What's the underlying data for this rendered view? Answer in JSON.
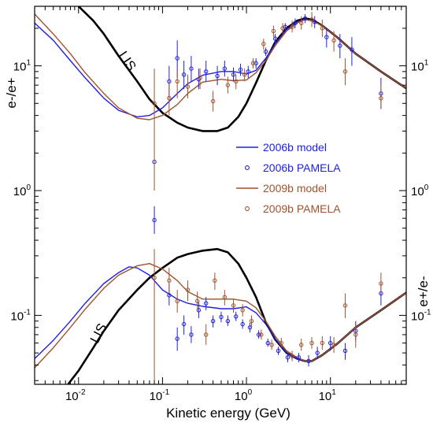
{
  "chart_data": {
    "type": "line",
    "title": "",
    "xlabel": "Kinetic energy (GeV)",
    "ylabel_left": "e-/e+",
    "ylabel_right": "e+/e-",
    "x_scale": "log",
    "y_scale": "log",
    "xlim": [
      0.003,
      80
    ],
    "ylim": [
      0.028,
      30
    ],
    "x_tick_labels": [
      {
        "v": 0.01,
        "base": "10",
        "exp": "-2"
      },
      {
        "v": 0.1,
        "base": "10",
        "exp": "-1"
      },
      {
        "v": 1,
        "base": "10",
        "exp": "0"
      },
      {
        "v": 10,
        "base": "10",
        "exp": "1"
      }
    ],
    "y_tick_labels": [
      {
        "v": 10,
        "base": "10",
        "exp": "1"
      },
      {
        "v": 1,
        "base": "10",
        "exp": "0"
      },
      {
        "v": 0.1,
        "base": "10",
        "exp": "-1"
      }
    ],
    "legend": [
      {
        "label": "2006b model",
        "kind": "line",
        "color": "#2020e0"
      },
      {
        "label": "2006b PAMELA",
        "kind": "marker",
        "color": "#2020e0"
      },
      {
        "label": "2009b model",
        "kind": "line",
        "color": "#a0522d"
      },
      {
        "label": "2009b PAMELA",
        "kind": "marker",
        "color": "#a0522d"
      }
    ],
    "annotations": [
      "LIS",
      "LIS"
    ],
    "series": [
      {
        "group": "e-/e+",
        "label": "LIS",
        "kind": "line",
        "color": "#000000",
        "x": [
          0.01,
          0.015,
          0.02,
          0.03,
          0.05,
          0.07,
          0.1,
          0.15,
          0.2,
          0.3,
          0.45,
          0.6,
          0.8,
          1.0,
          1.3,
          1.7,
          2.2,
          3,
          4,
          5,
          6,
          8,
          12,
          20,
          40,
          80
        ],
        "y": [
          30,
          23,
          18,
          12,
          7.5,
          5.4,
          4.2,
          3.5,
          3.2,
          3.0,
          3.0,
          3.2,
          3.9,
          5.0,
          7.3,
          11,
          15.5,
          20,
          23,
          24,
          23.5,
          21,
          17,
          12.5,
          9,
          6.6
        ]
      },
      {
        "group": "e-/e+",
        "label": "2006b model",
        "kind": "line",
        "color": "#2020e0",
        "x": [
          0.003,
          0.005,
          0.008,
          0.012,
          0.02,
          0.03,
          0.05,
          0.07,
          0.1,
          0.15,
          0.2,
          0.3,
          0.5,
          0.7,
          1.0,
          1.3,
          1.7,
          2.2,
          3,
          4,
          5,
          6,
          8,
          12,
          20,
          40,
          80
        ],
        "y": [
          22,
          16,
          11,
          8,
          5.5,
          4.4,
          3.9,
          4.0,
          4.6,
          6.0,
          7.2,
          8.4,
          9.0,
          9.0,
          8.6,
          9.2,
          11.5,
          15,
          19.5,
          22.5,
          23.5,
          23,
          21,
          17,
          12.5,
          9,
          6.6
        ]
      },
      {
        "group": "e-/e+",
        "label": "2009b model",
        "kind": "line",
        "color": "#a0522d",
        "x": [
          0.003,
          0.005,
          0.008,
          0.012,
          0.02,
          0.03,
          0.05,
          0.07,
          0.1,
          0.15,
          0.2,
          0.3,
          0.5,
          0.7,
          1.0,
          1.3,
          1.7,
          2.2,
          3,
          4,
          5,
          6,
          8,
          12,
          20,
          40,
          80
        ],
        "y": [
          26,
          18,
          12.5,
          8.8,
          6.0,
          4.6,
          3.8,
          3.7,
          4.0,
          4.9,
          6.0,
          7.4,
          7.8,
          7.6,
          7.7,
          8.8,
          11,
          14.5,
          19,
          22,
          23.5,
          23,
          21,
          17,
          12.5,
          9,
          6.6
        ]
      },
      {
        "group": "e+/e-",
        "label": "LIS",
        "kind": "line",
        "color": "#000000",
        "x": [
          0.0075,
          0.01,
          0.015,
          0.02,
          0.03,
          0.05,
          0.07,
          0.1,
          0.15,
          0.2,
          0.3,
          0.45,
          0.6,
          0.8,
          1.0,
          1.3,
          1.7,
          2.2,
          3,
          4,
          5,
          6,
          8,
          12,
          20,
          40,
          80
        ],
        "y": [
          0.028,
          0.036,
          0.055,
          0.075,
          0.11,
          0.16,
          0.2,
          0.24,
          0.29,
          0.31,
          0.33,
          0.34,
          0.32,
          0.26,
          0.2,
          0.14,
          0.088,
          0.064,
          0.05,
          0.045,
          0.043,
          0.043,
          0.048,
          0.059,
          0.08,
          0.11,
          0.152
        ]
      },
      {
        "group": "e+/e-",
        "label": "2006b model",
        "kind": "line",
        "color": "#2020e0",
        "x": [
          0.003,
          0.005,
          0.008,
          0.012,
          0.02,
          0.03,
          0.04,
          0.05,
          0.07,
          0.1,
          0.15,
          0.2,
          0.3,
          0.5,
          0.7,
          1.0,
          1.3,
          1.7,
          2.2,
          3,
          4,
          5,
          6,
          8,
          12,
          20,
          40,
          80
        ],
        "y": [
          0.045,
          0.063,
          0.09,
          0.125,
          0.18,
          0.22,
          0.245,
          0.24,
          0.21,
          0.16,
          0.135,
          0.125,
          0.118,
          0.113,
          0.113,
          0.117,
          0.105,
          0.085,
          0.065,
          0.05,
          0.045,
          0.043,
          0.043,
          0.048,
          0.059,
          0.08,
          0.11,
          0.152
        ]
      },
      {
        "group": "e+/e-",
        "label": "2009b model",
        "kind": "line",
        "color": "#a0522d",
        "x": [
          0.003,
          0.005,
          0.008,
          0.012,
          0.02,
          0.03,
          0.05,
          0.07,
          0.1,
          0.15,
          0.2,
          0.3,
          0.5,
          0.7,
          1.0,
          1.3,
          1.7,
          2.2,
          3,
          4,
          5,
          6,
          8,
          12,
          20,
          40,
          80
        ],
        "y": [
          0.038,
          0.055,
          0.08,
          0.112,
          0.165,
          0.21,
          0.25,
          0.26,
          0.235,
          0.19,
          0.155,
          0.135,
          0.135,
          0.135,
          0.13,
          0.115,
          0.09,
          0.068,
          0.052,
          0.046,
          0.043,
          0.043,
          0.048,
          0.059,
          0.08,
          0.11,
          0.152
        ]
      },
      {
        "group": "e-/e+",
        "label": "2006b PAMELA",
        "kind": "points",
        "color": "#2020e0",
        "points": [
          {
            "x": 0.08,
            "y": 1.7,
            "lo": 1.7,
            "hi": 1.7
          },
          {
            "x": 0.08,
            "y": 0.58,
            "lo": 0.45,
            "hi": 0.75
          },
          {
            "x": 0.12,
            "y": 7.5,
            "lo": 5.5,
            "hi": 10
          },
          {
            "x": 0.15,
            "y": 11.5,
            "lo": 8,
            "hi": 16
          },
          {
            "x": 0.18,
            "y": 8.5,
            "lo": 6.5,
            "hi": 11
          },
          {
            "x": 0.22,
            "y": 9.5,
            "lo": 7.5,
            "hi": 12
          },
          {
            "x": 0.27,
            "y": 7.8,
            "lo": 6.5,
            "hi": 9.5
          },
          {
            "x": 0.33,
            "y": 9,
            "lo": 7.5,
            "hi": 11
          },
          {
            "x": 0.45,
            "y": 8.3,
            "lo": 7,
            "hi": 10
          },
          {
            "x": 0.55,
            "y": 9.5,
            "lo": 8.2,
            "hi": 11
          },
          {
            "x": 0.7,
            "y": 8.5,
            "lo": 7.5,
            "hi": 9.7
          },
          {
            "x": 0.85,
            "y": 9.3,
            "lo": 8.3,
            "hi": 10.4
          },
          {
            "x": 1.05,
            "y": 9,
            "lo": 8,
            "hi": 10
          },
          {
            "x": 1.3,
            "y": 10.5,
            "lo": 9.5,
            "hi": 11.5
          },
          {
            "x": 1.7,
            "y": 13,
            "lo": 12,
            "hi": 14
          },
          {
            "x": 2.2,
            "y": 16.5,
            "lo": 15,
            "hi": 18
          },
          {
            "x": 2.9,
            "y": 20.5,
            "lo": 19,
            "hi": 22
          },
          {
            "x": 3.8,
            "y": 22,
            "lo": 20,
            "hi": 24
          },
          {
            "x": 5.0,
            "y": 24,
            "lo": 22,
            "hi": 26
          },
          {
            "x": 6.5,
            "y": 22.5,
            "lo": 20,
            "hi": 25
          },
          {
            "x": 9,
            "y": 17,
            "lo": 14,
            "hi": 20
          },
          {
            "x": 13,
            "y": 14.5,
            "lo": 11.5,
            "hi": 18
          },
          {
            "x": 18,
            "y": 13.5,
            "lo": 10,
            "hi": 17
          },
          {
            "x": 40,
            "y": 6,
            "lo": 4.5,
            "hi": 8
          }
        ]
      },
      {
        "group": "e-/e+",
        "label": "2009b PAMELA",
        "kind": "points",
        "color": "#a0522d",
        "points": [
          {
            "x": 0.08,
            "y": 5,
            "lo": 1.0,
            "hi": 9.5
          },
          {
            "x": 0.12,
            "y": 5.5,
            "lo": 4,
            "hi": 7.5
          },
          {
            "x": 0.15,
            "y": 7.5,
            "lo": 5.5,
            "hi": 9.5
          },
          {
            "x": 0.2,
            "y": 6.8,
            "lo": 5.5,
            "hi": 8.5
          },
          {
            "x": 0.28,
            "y": 8,
            "lo": 6.5,
            "hi": 9.5
          },
          {
            "x": 0.4,
            "y": 5.2,
            "lo": 4.3,
            "hi": 6.3
          },
          {
            "x": 0.6,
            "y": 7,
            "lo": 6,
            "hi": 8.2
          },
          {
            "x": 0.75,
            "y": 7.5,
            "lo": 6.5,
            "hi": 8.5
          },
          {
            "x": 0.95,
            "y": 8.5,
            "lo": 7.5,
            "hi": 9.5
          },
          {
            "x": 1.2,
            "y": 10.5,
            "lo": 9.5,
            "hi": 11.5
          },
          {
            "x": 1.6,
            "y": 15,
            "lo": 13.5,
            "hi": 16.5
          },
          {
            "x": 2.1,
            "y": 19,
            "lo": 17,
            "hi": 21
          },
          {
            "x": 2.7,
            "y": 20,
            "lo": 18,
            "hi": 22
          },
          {
            "x": 3.5,
            "y": 20.5,
            "lo": 18.5,
            "hi": 23
          },
          {
            "x": 4.5,
            "y": 22,
            "lo": 19.5,
            "hi": 25
          },
          {
            "x": 6,
            "y": 23.5,
            "lo": 20.5,
            "hi": 27
          },
          {
            "x": 8,
            "y": 20,
            "lo": 17,
            "hi": 23.5
          },
          {
            "x": 11,
            "y": 16,
            "lo": 13,
            "hi": 19
          },
          {
            "x": 15,
            "y": 9,
            "lo": 7,
            "hi": 11.5
          },
          {
            "x": 40,
            "y": 5.5,
            "lo": 4.5,
            "hi": 7
          }
        ]
      },
      {
        "group": "e+/e-",
        "label": "2006b PAMELA",
        "kind": "points",
        "color": "#2020e0",
        "points": [
          {
            "x": 0.12,
            "y": 0.145,
            "lo": 0.12,
            "hi": 0.18
          },
          {
            "x": 0.15,
            "y": 0.065,
            "lo": 0.052,
            "hi": 0.08
          },
          {
            "x": 0.18,
            "y": 0.085,
            "lo": 0.07,
            "hi": 0.1
          },
          {
            "x": 0.22,
            "y": 0.07,
            "lo": 0.06,
            "hi": 0.082
          },
          {
            "x": 0.27,
            "y": 0.11,
            "lo": 0.095,
            "hi": 0.13
          },
          {
            "x": 0.33,
            "y": 0.125,
            "lo": 0.11,
            "hi": 0.14
          },
          {
            "x": 0.4,
            "y": 0.09,
            "lo": 0.08,
            "hi": 0.1
          },
          {
            "x": 0.5,
            "y": 0.097,
            "lo": 0.088,
            "hi": 0.107
          },
          {
            "x": 0.6,
            "y": 0.09,
            "lo": 0.082,
            "hi": 0.1
          },
          {
            "x": 0.75,
            "y": 0.098,
            "lo": 0.09,
            "hi": 0.107
          },
          {
            "x": 0.9,
            "y": 0.085,
            "lo": 0.078,
            "hi": 0.093
          },
          {
            "x": 1.1,
            "y": 0.08,
            "lo": 0.073,
            "hi": 0.087
          },
          {
            "x": 1.4,
            "y": 0.07,
            "lo": 0.065,
            "hi": 0.076
          },
          {
            "x": 1.8,
            "y": 0.06,
            "lo": 0.056,
            "hi": 0.065
          },
          {
            "x": 2.4,
            "y": 0.052,
            "lo": 0.048,
            "hi": 0.056
          },
          {
            "x": 3.1,
            "y": 0.046,
            "lo": 0.042,
            "hi": 0.05
          },
          {
            "x": 4.2,
            "y": 0.046,
            "lo": 0.042,
            "hi": 0.05
          },
          {
            "x": 5.5,
            "y": 0.043,
            "lo": 0.039,
            "hi": 0.048
          },
          {
            "x": 7,
            "y": 0.05,
            "lo": 0.045,
            "hi": 0.056
          },
          {
            "x": 10,
            "y": 0.06,
            "lo": 0.052,
            "hi": 0.068
          },
          {
            "x": 15,
            "y": 0.052,
            "lo": 0.044,
            "hi": 0.06
          },
          {
            "x": 20,
            "y": 0.075,
            "lo": 0.062,
            "hi": 0.09
          },
          {
            "x": 40,
            "y": 0.15,
            "lo": 0.12,
            "hi": 0.18
          }
        ]
      },
      {
        "group": "e+/e-",
        "label": "2009b PAMELA",
        "kind": "points",
        "color": "#a0522d",
        "points": [
          {
            "x": 0.08,
            "y": 0.2,
            "lo": 0.03,
            "hi": 0.34
          },
          {
            "x": 0.12,
            "y": 0.19,
            "lo": 0.15,
            "hi": 0.24
          },
          {
            "x": 0.15,
            "y": 0.13,
            "lo": 0.105,
            "hi": 0.16
          },
          {
            "x": 0.2,
            "y": 0.16,
            "lo": 0.13,
            "hi": 0.19
          },
          {
            "x": 0.26,
            "y": 0.13,
            "lo": 0.11,
            "hi": 0.155
          },
          {
            "x": 0.33,
            "y": 0.07,
            "lo": 0.058,
            "hi": 0.085
          },
          {
            "x": 0.42,
            "y": 0.19,
            "lo": 0.16,
            "hi": 0.22
          },
          {
            "x": 0.55,
            "y": 0.14,
            "lo": 0.12,
            "hi": 0.16
          },
          {
            "x": 0.7,
            "y": 0.12,
            "lo": 0.105,
            "hi": 0.135
          },
          {
            "x": 0.9,
            "y": 0.11,
            "lo": 0.098,
            "hi": 0.123
          },
          {
            "x": 1.15,
            "y": 0.09,
            "lo": 0.082,
            "hi": 0.1
          },
          {
            "x": 1.5,
            "y": 0.07,
            "lo": 0.064,
            "hi": 0.077
          },
          {
            "x": 2.0,
            "y": 0.058,
            "lo": 0.053,
            "hi": 0.064
          },
          {
            "x": 2.6,
            "y": 0.06,
            "lo": 0.055,
            "hi": 0.066
          },
          {
            "x": 3.5,
            "y": 0.047,
            "lo": 0.043,
            "hi": 0.052
          },
          {
            "x": 4.5,
            "y": 0.058,
            "lo": 0.052,
            "hi": 0.065
          },
          {
            "x": 6,
            "y": 0.06,
            "lo": 0.054,
            "hi": 0.067
          },
          {
            "x": 8,
            "y": 0.06,
            "lo": 0.053,
            "hi": 0.068
          },
          {
            "x": 11,
            "y": 0.058,
            "lo": 0.05,
            "hi": 0.067
          },
          {
            "x": 15,
            "y": 0.12,
            "lo": 0.095,
            "hi": 0.15
          },
          {
            "x": 20,
            "y": 0.07,
            "lo": 0.055,
            "hi": 0.09
          },
          {
            "x": 40,
            "y": 0.18,
            "lo": 0.15,
            "hi": 0.22
          }
        ]
      }
    ]
  }
}
